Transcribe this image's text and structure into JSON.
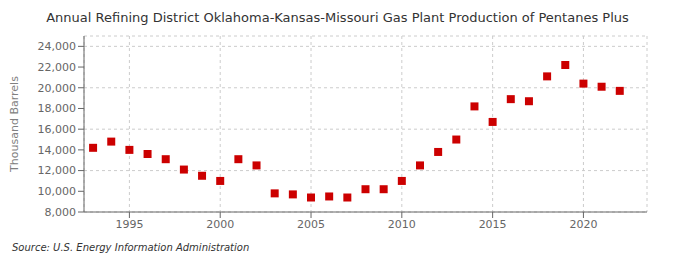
{
  "chart_data": {
    "type": "scatter",
    "title": "Annual Refining District Oklahoma-Kansas-Missouri Gas Plant Production of Pentanes Plus",
    "y_label": "Thousand Barrels",
    "annotations": [
      "Source: U.S. Energy Information Administration"
    ],
    "x": [
      1993,
      1994,
      1995,
      1996,
      1997,
      1998,
      1999,
      2000,
      2001,
      2002,
      2003,
      2004,
      2005,
      2006,
      2007,
      2008,
      2009,
      2010,
      2011,
      2012,
      2013,
      2014,
      2015,
      2016,
      2017,
      2018,
      2019,
      2020,
      2021,
      2022
    ],
    "values": [
      14200,
      14800,
      14000,
      13600,
      13100,
      12100,
      11500,
      11000,
      13100,
      12500,
      9800,
      9700,
      9400,
      9500,
      9400,
      10200,
      10200,
      11000,
      12500,
      13800,
      15000,
      18200,
      16700,
      18900,
      18700,
      21100,
      22200,
      20400,
      20100,
      19700
    ],
    "color": "#cc0000",
    "marker": "square",
    "xlim": [
      1992.5,
      2023.5
    ],
    "xticks": [
      1995,
      2000,
      2005,
      2010,
      2015,
      2020
    ],
    "ylim": [
      8000,
      25000
    ],
    "yticks": [
      {
        "value": 8000,
        "label": "8,000"
      },
      {
        "value": 10000,
        "label": "10,000"
      },
      {
        "value": 12000,
        "label": "12,000"
      },
      {
        "value": 14000,
        "label": "14,000"
      },
      {
        "value": 16000,
        "label": "16,000"
      },
      {
        "value": 18000,
        "label": "18,000"
      },
      {
        "value": 20000,
        "label": "20,000"
      },
      {
        "value": 22000,
        "label": "22,000"
      },
      {
        "value": 24000,
        "label": "24,000"
      }
    ],
    "grid": true
  }
}
